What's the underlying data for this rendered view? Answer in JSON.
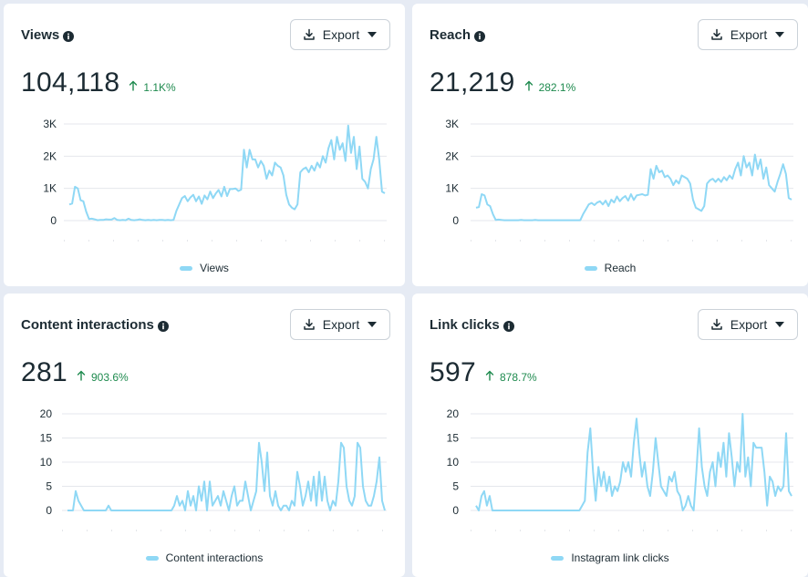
{
  "colors": {
    "line": "#8fd8f5",
    "grid": "#e4e7ec",
    "positive": "#1e8a4e",
    "background": "#e6ebf4"
  },
  "icons": {
    "info": "info-circle-icon",
    "export": "download-icon",
    "caret": "caret-down-icon",
    "trend": "arrow-up-icon"
  },
  "cards": [
    {
      "title": "Views",
      "export_label": "Export",
      "value": "104,118",
      "change": "1.1K%",
      "legend": "Views",
      "y_ticks": [
        "3K",
        "2K",
        "1K",
        "0"
      ],
      "chart_data": {
        "type": "line",
        "ylim": [
          0,
          3000
        ],
        "series": [
          {
            "name": "Views",
            "values": [
              500,
              530,
              1050,
              1000,
              630,
              600,
              280,
              50,
              60,
              40,
              10,
              20,
              20,
              40,
              30,
              30,
              80,
              20,
              10,
              20,
              10,
              60,
              20,
              10,
              20,
              40,
              20,
              10,
              20,
              10,
              20,
              10,
              20,
              20,
              10,
              20,
              10,
              20,
              300,
              500,
              700,
              760,
              600,
              720,
              800,
              600,
              750,
              520,
              780,
              660,
              900,
              700,
              840,
              950,
              750,
              1050,
              760,
              980,
              980,
              1000,
              920,
              960,
              2200,
              1650,
              2200,
              1900,
              1900,
              1650,
              1850,
              1700,
              1300,
              1550,
              1400,
              1800,
              1700,
              1650,
              1400,
              800,
              500,
              400,
              350,
              500,
              1500,
              1600,
              1650,
              1500,
              1700,
              1550,
              1800,
              1650,
              2000,
              1800,
              2250,
              2500,
              1900,
              2600,
              2200,
              2400,
              1850,
              2950,
              2100,
              2600,
              1600,
              2300,
              1300,
              1200,
              1000,
              1600,
              1900,
              2600,
              1900,
              900,
              850
            ]
          }
        ]
      }
    },
    {
      "title": "Reach",
      "export_label": "Export",
      "value": "21,219",
      "change": "282.1%",
      "legend": "Reach",
      "y_ticks": [
        "3K",
        "2K",
        "1K",
        "0"
      ],
      "chart_data": {
        "type": "line",
        "ylim": [
          0,
          3000
        ],
        "series": [
          {
            "name": "Reach",
            "values": [
              400,
              420,
              820,
              780,
              500,
              450,
              200,
              20,
              30,
              20,
              10,
              10,
              10,
              10,
              10,
              10,
              20,
              10,
              10,
              10,
              10,
              20,
              10,
              10,
              10,
              10,
              10,
              10,
              10,
              10,
              10,
              10,
              10,
              10,
              10,
              10,
              10,
              10,
              200,
              350,
              500,
              550,
              480,
              560,
              600,
              500,
              620,
              450,
              650,
              560,
              750,
              600,
              700,
              760,
              620,
              820,
              640,
              780,
              800,
              820,
              780,
              800,
              1600,
              1300,
              1700,
              1500,
              1550,
              1350,
              1400,
              1300,
              1100,
              1250,
              1150,
              1400,
              1350,
              1300,
              1150,
              650,
              400,
              350,
              300,
              450,
              1150,
              1250,
              1300,
              1200,
              1300,
              1200,
              1350,
              1250,
              1400,
              1300,
              1600,
              1800,
              1400,
              2000,
              1650,
              1800,
              1400,
              2050,
              1600,
              1900,
              1300,
              1650,
              1100,
              1000,
              900,
              1200,
              1450,
              1750,
              1450,
              700,
              650
            ]
          }
        ]
      }
    },
    {
      "title": "Content interactions",
      "export_label": "Export",
      "value": "281",
      "change": "903.6%",
      "legend": "Content interactions",
      "y_ticks": [
        "20",
        "15",
        "10",
        "5",
        "0"
      ],
      "chart_data": {
        "type": "line",
        "ylim": [
          0,
          20
        ],
        "series": [
          {
            "name": "Content interactions",
            "values": [
              0,
              0,
              0,
              4,
              2,
              1,
              0,
              0,
              0,
              0,
              0,
              0,
              0,
              0,
              0,
              1,
              0,
              0,
              0,
              0,
              0,
              0,
              0,
              0,
              0,
              0,
              0,
              0,
              0,
              0,
              0,
              0,
              0,
              0,
              0,
              0,
              0,
              0,
              0,
              1,
              3,
              1,
              2,
              0,
              4,
              1,
              3,
              0,
              5,
              2,
              6,
              0,
              6,
              1,
              2,
              3,
              1,
              4,
              2,
              0,
              3,
              5,
              1,
              2,
              2,
              6,
              3,
              0,
              2,
              4,
              14,
              10,
              4,
              12,
              3,
              1,
              4,
              1,
              0,
              1,
              1,
              0,
              2,
              1,
              8,
              5,
              1,
              3,
              6,
              2,
              7,
              1,
              8,
              2,
              7,
              2,
              0,
              2,
              1,
              6,
              14,
              13,
              5,
              2,
              1,
              3,
              14,
              13,
              5,
              2,
              1,
              1,
              3,
              6,
              11,
              2,
              0
            ]
          }
        ]
      }
    },
    {
      "title": "Link clicks",
      "export_label": "Export",
      "value": "597",
      "change": "878.7%",
      "legend": "Instagram link clicks",
      "y_ticks": [
        "20",
        "15",
        "10",
        "5",
        "0"
      ],
      "chart_data": {
        "type": "line",
        "ylim": [
          0,
          20
        ],
        "series": [
          {
            "name": "Instagram link clicks",
            "values": [
              1,
              0,
              3,
              4,
              1,
              3,
              0,
              0,
              0,
              0,
              0,
              0,
              0,
              0,
              0,
              0,
              0,
              0,
              0,
              0,
              0,
              0,
              0,
              0,
              0,
              0,
              0,
              0,
              0,
              0,
              0,
              0,
              0,
              0,
              0,
              0,
              0,
              0,
              0,
              1,
              2,
              12,
              17,
              8,
              2,
              9,
              5,
              8,
              4,
              7,
              3,
              5,
              4,
              6,
              10,
              8,
              10,
              7,
              14,
              19,
              12,
              7,
              10,
              5,
              3,
              8,
              15,
              10,
              5,
              4,
              3,
              7,
              6,
              8,
              4,
              3,
              0,
              1,
              3,
              1,
              0,
              8,
              17,
              9,
              5,
              3,
              8,
              10,
              5,
              12,
              9,
              14,
              7,
              16,
              11,
              5,
              10,
              8,
              20,
              7,
              11,
              5,
              14,
              13,
              13,
              13,
              8,
              1,
              7,
              6,
              3,
              5,
              4,
              5,
              16,
              4,
              3
            ]
          }
        ]
      }
    }
  ]
}
